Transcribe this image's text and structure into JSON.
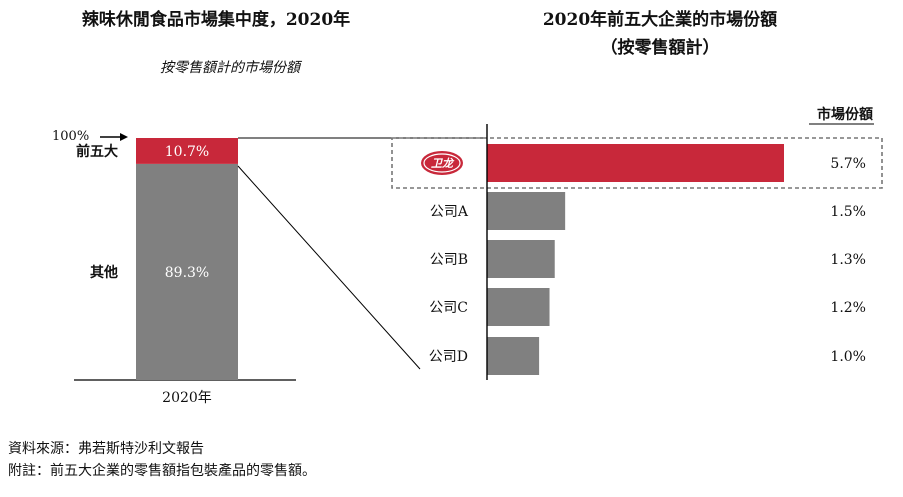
{
  "chart_data": [
    {
      "type": "bar",
      "stacked": true,
      "title": "辣味休閒食品市場集中度，2020年",
      "subtitle": "按零售額計的市場份額",
      "categories": [
        "2020年"
      ],
      "series": [
        {
          "name": "其他",
          "values": [
            89.3
          ],
          "label": "89.3%",
          "color": "#808080"
        },
        {
          "name": "前五大",
          "values": [
            10.7
          ],
          "label": "10.7%",
          "color": "#c8283a"
        }
      ],
      "top_marker": "100%",
      "ylim": [
        0,
        100
      ]
    },
    {
      "type": "bar",
      "orientation": "horizontal",
      "title_line1": "2020年前五大企業的市場份額",
      "title_line2": "（按零售額計）",
      "value_header": "市場份額",
      "categories": [
        "卫龙",
        "公司A",
        "公司B",
        "公司C",
        "公司D"
      ],
      "values": [
        5.7,
        1.5,
        1.3,
        1.2,
        1.0
      ],
      "labels": [
        "5.7%",
        "1.5%",
        "1.3%",
        "1.2%",
        "1.0%"
      ],
      "colors": [
        "#c8283a",
        "#808080",
        "#808080",
        "#808080",
        "#808080"
      ],
      "highlight_logo_text": "卫龙"
    }
  ],
  "footer": {
    "source": "資料來源：弗若斯特沙利文報告",
    "note": "附註：前五大企業的零售額指包裝產品的零售額。"
  }
}
